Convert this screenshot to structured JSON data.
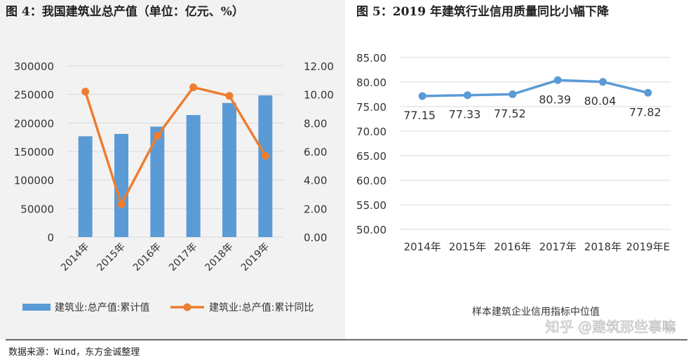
{
  "colors": {
    "bar": "#5b9bd5",
    "growth_line": "#ed7d31",
    "index_line": "#5b9bd5",
    "grid": "#d9d9d9",
    "panel_bg": "#f2f2f2",
    "divider": "#333333",
    "text": "#333333"
  },
  "left_panel": {
    "title": "图 4：我国建筑业总产值（单位：亿元、%）"
  },
  "right_panel": {
    "title": "图 5：2019 年建筑行业信用质量同比小幅下降"
  },
  "footer": {
    "source": "数据来源：Wind，东方金诚整理",
    "watermark": "知乎 @建筑那些事嘛"
  },
  "chart_data": [
    {
      "type": "bar",
      "categories": [
        "2014年",
        "2015年",
        "2016年",
        "2017年",
        "2018年",
        "2019年"
      ],
      "series": [
        {
          "name": "建筑业:总产值:累计值",
          "type": "bar",
          "axis": "left",
          "values": [
            176700,
            180800,
            193600,
            213900,
            235100,
            248400
          ]
        },
        {
          "name": "建筑业:总产值:累计同比",
          "type": "line",
          "axis": "right",
          "values": [
            10.2,
            2.3,
            7.1,
            10.5,
            9.9,
            5.7
          ]
        }
      ],
      "y_left": {
        "ylim": [
          0,
          300000
        ],
        "ticks": [
          "0",
          "50000",
          "100000",
          "150000",
          "200000",
          "250000",
          "300000"
        ]
      },
      "y_right": {
        "ylim": [
          0,
          12
        ],
        "ticks": [
          "0.00",
          "2.00",
          "4.00",
          "6.00",
          "8.00",
          "10.00",
          "12.00"
        ]
      },
      "grid": true,
      "legend_placement": "bottom"
    },
    {
      "type": "line",
      "categories": [
        "2014年",
        "2015年",
        "2016年",
        "2017年",
        "2018年",
        "2019年E"
      ],
      "values": [
        77.15,
        77.33,
        77.52,
        80.39,
        80.04,
        77.82
      ],
      "data_labels": [
        "77.15",
        "77.33",
        "77.52",
        "80.39",
        "80.04",
        "77.82"
      ],
      "xlabel": "样本建筑企业信用指标中位值",
      "ylim": [
        50,
        85
      ],
      "y_ticks": [
        "50.00",
        "55.00",
        "60.00",
        "65.00",
        "70.00",
        "75.00",
        "80.00",
        "85.00"
      ],
      "grid": true
    }
  ]
}
